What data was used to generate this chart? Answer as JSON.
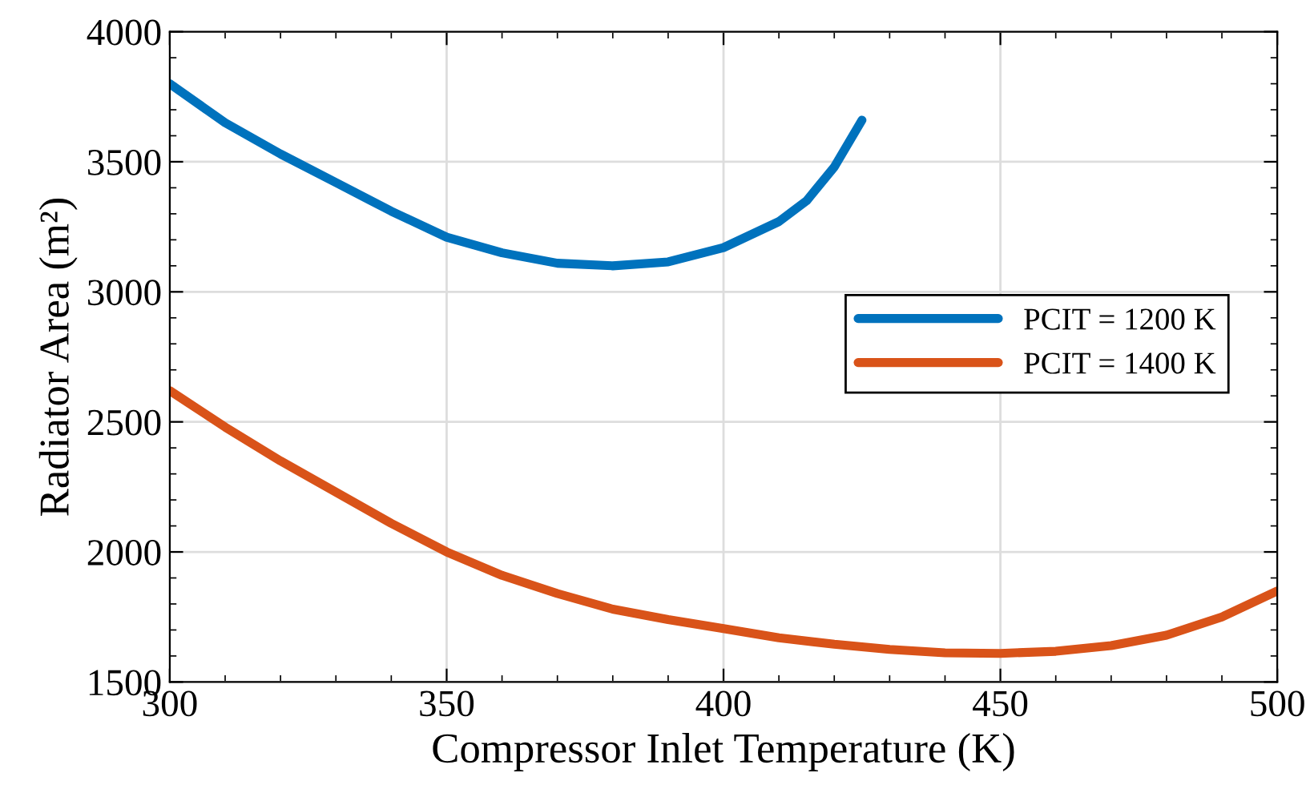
{
  "chart_data": {
    "type": "line",
    "xlabel": "Compressor Inlet Temperature (K)",
    "ylabel": "Radiator Area (m²)",
    "xlim": [
      300,
      500
    ],
    "xticks": [
      300,
      350,
      400,
      450,
      500
    ],
    "ylim": [
      1500,
      4000
    ],
    "yticks": [
      1500,
      2000,
      2500,
      3000,
      3500,
      4000
    ],
    "grid": true,
    "legend": "right",
    "line_style": "solid",
    "marker": "none",
    "series": [
      {
        "name": "PCIT = 1200 K",
        "color": "#0072bd",
        "x": [
          300,
          310,
          320,
          330,
          340,
          350,
          360,
          370,
          380,
          390,
          400,
          410,
          415,
          420,
          425
        ],
        "values": [
          3800,
          3650,
          3530,
          3420,
          3310,
          3210,
          3150,
          3110,
          3100,
          3115,
          3170,
          3270,
          3350,
          3480,
          3660
        ]
      },
      {
        "name": "PCIT = 1400 K",
        "color": "#d95319",
        "x": [
          300,
          310,
          320,
          330,
          340,
          350,
          360,
          370,
          380,
          390,
          400,
          410,
          420,
          430,
          440,
          450,
          460,
          470,
          480,
          490,
          500
        ],
        "values": [
          2620,
          2480,
          2350,
          2230,
          2110,
          2000,
          1910,
          1840,
          1780,
          1740,
          1705,
          1670,
          1645,
          1625,
          1612,
          1610,
          1618,
          1640,
          1680,
          1750,
          1850
        ]
      }
    ]
  }
}
